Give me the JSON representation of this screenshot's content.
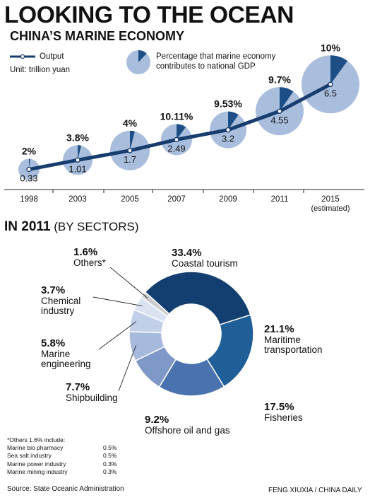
{
  "header": {
    "title": "LOOKING TO THE OCEAN",
    "subtitle": "CHINA’S MARINE ECONOMY"
  },
  "legend": {
    "output_label": "Output",
    "unit": "Unit: trillion yuan",
    "pct_label": "Percentage that marine economy contributes to national GDP"
  },
  "colors": {
    "bubble_fill": "#a9bedd",
    "bubble_wedge": "#1d4f86",
    "line": "#173c6e",
    "donut": [
      "#123f70",
      "#1f5e96",
      "#4a72ae",
      "#7e98c8",
      "#a7b9dc",
      "#c1cfe8",
      "#dbe3f2",
      "#cccccc"
    ]
  },
  "section2": {
    "title_bold": "IN 2011",
    "title_rest": " (BY SECTORS)"
  },
  "chart_data": [
    {
      "type": "line",
      "x": [
        "1998",
        "2003",
        "2005",
        "2007",
        "2009",
        "2011",
        "2015"
      ],
      "x_sublabels": [
        "",
        "",
        "",
        "",
        "",
        "",
        "(estimated)"
      ],
      "series": [
        {
          "name": "Output",
          "values": [
            0.33,
            1.01,
            1.7,
            2.49,
            3.2,
            4.55,
            6.5
          ]
        },
        {
          "name": "Percentage that marine economy contributes to national GDP",
          "values": [
            2,
            3.8,
            4,
            10.11,
            9.53,
            9.7,
            10
          ]
        }
      ],
      "value_labels": [
        "0.33",
        "1.01",
        "1.7",
        "2.49",
        "3.2",
        "4.55",
        "6.5"
      ],
      "pct_labels": [
        "2%",
        "3.8%",
        "4%",
        "10.11%",
        "9.53%",
        "9.7%",
        "10%"
      ],
      "unit": "Unit: trillion yuan"
    },
    {
      "type": "pie",
      "title": "IN 2011 (BY SECTORS)",
      "labels": [
        "Coastal tourism",
        "Maritime transportation",
        "Fisheries",
        "Offshore oil and gas",
        "Shipbuilding",
        "Marine engineering",
        "Chemical industry",
        "Others*"
      ],
      "values": [
        33.4,
        21.1,
        17.5,
        9.2,
        7.7,
        5.8,
        3.7,
        1.6
      ],
      "pct_labels": [
        "33.4%",
        "21.1%",
        "17.5%",
        "9.2%",
        "7.7%",
        "5.8%",
        "3.7%",
        "1.6%"
      ]
    }
  ],
  "footnote": {
    "title": "*Others 1.6% include:",
    "rows": [
      {
        "name": "Marine bio pharmacy",
        "value": "0.5%"
      },
      {
        "name": "Sea salt industry",
        "value": "0.5%"
      },
      {
        "name": "Marine power industry",
        "value": "0.3%"
      },
      {
        "name": "Marine mining industry",
        "value": "0.3%"
      }
    ]
  },
  "source": "Source: State Oceanic Administration",
  "credit": "FENG XIUXIA / CHINA DAILY"
}
